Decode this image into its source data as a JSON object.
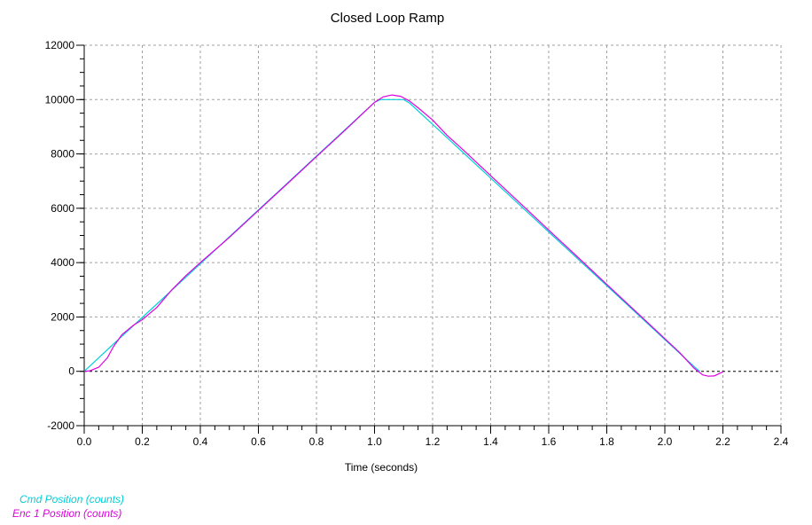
{
  "colors": {
    "cmd": "#00d0d8",
    "enc": "#e000e0",
    "grid": "#a0a0a0",
    "axis": "#000000"
  },
  "chart_data": {
    "type": "line",
    "title": "Closed Loop Ramp",
    "xlabel": "Time (seconds)",
    "ylabel": "",
    "xlim": [
      0,
      2.4
    ],
    "ylim": [
      -2000,
      12000
    ],
    "xticks": [
      "0.0",
      "0.2",
      "0.4",
      "0.6",
      "0.8",
      "1.0",
      "1.2",
      "1.4",
      "1.6",
      "1.8",
      "2.0",
      "2.2",
      "2.4"
    ],
    "yticks": [
      "12000",
      "10000",
      "8000",
      "6000",
      "4000",
      "2000",
      "0",
      "-2000"
    ],
    "grid": true,
    "legend_position": "bottom-left",
    "series": [
      {
        "name": "Cmd Position (counts)",
        "color": "#00d0d8",
        "x": [
          0.0,
          0.05,
          0.1,
          0.2,
          0.3,
          0.4,
          0.5,
          0.6,
          0.7,
          0.8,
          0.9,
          1.0,
          1.02,
          1.1,
          1.12,
          1.2,
          1.3,
          1.4,
          1.5,
          1.6,
          1.7,
          1.8,
          1.9,
          2.0,
          2.05,
          2.1,
          2.12
        ],
        "y": [
          0,
          500,
          1000,
          1980,
          2970,
          3960,
          4950,
          5940,
          6930,
          7920,
          8910,
          9900,
          10000,
          10000,
          9880,
          9090,
          8100,
          7110,
          6120,
          5130,
          4140,
          3150,
          2160,
          1170,
          675,
          180,
          0
        ]
      },
      {
        "name": "Enc 1 Position (counts)",
        "color": "#e000e0",
        "x": [
          0.0,
          0.02,
          0.05,
          0.08,
          0.1,
          0.13,
          0.17,
          0.2,
          0.25,
          0.3,
          0.35,
          0.4,
          0.5,
          0.6,
          0.7,
          0.8,
          0.9,
          1.0,
          1.03,
          1.06,
          1.09,
          1.12,
          1.15,
          1.2,
          1.25,
          1.3,
          1.4,
          1.5,
          1.6,
          1.7,
          1.8,
          1.9,
          2.0,
          2.05,
          2.1,
          2.13,
          2.15,
          2.17,
          2.2
        ],
        "y": [
          0,
          20,
          150,
          500,
          900,
          1350,
          1700,
          1900,
          2350,
          2980,
          3520,
          4000,
          4930,
          5920,
          6910,
          7900,
          8890,
          9900,
          10100,
          10170,
          10120,
          9950,
          9700,
          9250,
          8680,
          8200,
          7200,
          6200,
          5200,
          4200,
          3200,
          2200,
          1200,
          700,
          120,
          -130,
          -180,
          -170,
          -20
        ]
      }
    ]
  }
}
